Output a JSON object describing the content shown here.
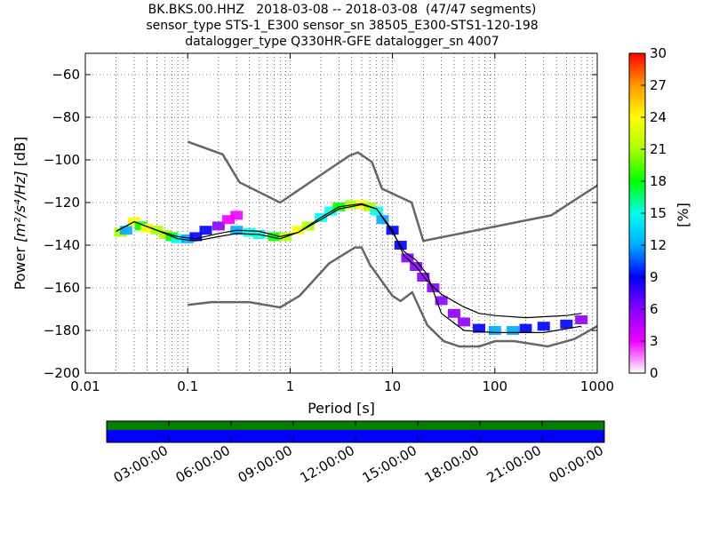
{
  "chart_data": [
    {
      "type": "heatmap",
      "title_lines": [
        "BK.BKS.00.HHZ   2018-03-08 -- 2018-03-08  (47/47 segments)",
        "sensor_type STS-1_E300 sensor_sn 38505_E300-STS1-120-198",
        "datalogger_type Q330HR-GFE datalogger_sn 4007"
      ],
      "xlabel": "Period [s]",
      "ylabel_prefix": "Power ",
      "ylabel_units": "[m²/s⁴/Hz]",
      "ylabel_suffix": " [dB]",
      "xscale": "log",
      "xlim": [
        0.01,
        1000
      ],
      "ylim": [
        -200,
        -50
      ],
      "x_ticks": [
        0.01,
        0.1,
        1,
        10,
        100,
        1000
      ],
      "x_tick_labels": [
        "0.01",
        "0.1",
        "1",
        "10",
        "100",
        "1000"
      ],
      "y_ticks": [
        -200,
        -180,
        -160,
        -140,
        -120,
        -100,
        -80,
        -60
      ],
      "y_tick_labels": [
        "−200",
        "−180",
        "−160",
        "−140",
        "−120",
        "−100",
        "−80",
        "−60"
      ],
      "grid": true,
      "colorbar": {
        "label": "[%]",
        "range": [
          0,
          30
        ],
        "ticks": [
          "0",
          "3",
          "6",
          "9",
          "12",
          "15",
          "18",
          "21",
          "24",
          "27",
          "30"
        ]
      },
      "noise_models": [
        {
          "name": "high",
          "points": [
            [
              0.1,
              -91.5
            ],
            [
              0.22,
              -97.4
            ],
            [
              0.32,
              -110.5
            ],
            [
              0.8,
              -120
            ],
            [
              3.8,
              -98
            ],
            [
              4.6,
              -96.5
            ],
            [
              6.3,
              -101
            ],
            [
              7.9,
              -113.5
            ],
            [
              15.4,
              -120
            ],
            [
              20,
              -138
            ],
            [
              354.8,
              -126
            ],
            [
              1000,
              -112
            ]
          ]
        },
        {
          "name": "low",
          "points": [
            [
              0.1,
              -168
            ],
            [
              0.17,
              -166.7
            ],
            [
              0.4,
              -166.7
            ],
            [
              0.8,
              -169.2
            ],
            [
              1.24,
              -163.7
            ],
            [
              2.4,
              -148.6
            ],
            [
              4.3,
              -141.1
            ],
            [
              5,
              -141.1
            ],
            [
              6,
              -149
            ],
            [
              10,
              -163.8
            ],
            [
              12,
              -166.2
            ],
            [
              15.6,
              -162.1
            ],
            [
              21.9,
              -177.5
            ],
            [
              31.6,
              -185
            ],
            [
              45,
              -187.5
            ],
            [
              70,
              -187.5
            ],
            [
              101,
              -185
            ],
            [
              154,
              -185
            ],
            [
              328,
              -187.5
            ],
            [
              600,
              -184
            ],
            [
              1000,
              -178
            ]
          ]
        }
      ],
      "mean_curve": {
        "points": [
          [
            0.02,
            -133.5
          ],
          [
            0.03,
            -129
          ],
          [
            0.05,
            -133
          ],
          [
            0.08,
            -136
          ],
          [
            0.12,
            -137
          ],
          [
            0.2,
            -134.5
          ],
          [
            0.3,
            -133
          ],
          [
            0.5,
            -133.5
          ],
          [
            0.8,
            -136
          ],
          [
            1.2,
            -134
          ],
          [
            2,
            -128
          ],
          [
            3,
            -123
          ],
          [
            5,
            -121
          ],
          [
            7,
            -123
          ],
          [
            10,
            -133
          ],
          [
            13,
            -145
          ],
          [
            17,
            -150
          ],
          [
            22,
            -157
          ],
          [
            30,
            -163
          ],
          [
            50,
            -169
          ],
          [
            70,
            -172
          ],
          [
            100,
            -173
          ],
          [
            200,
            -174
          ],
          [
            500,
            -173
          ],
          [
            700,
            -172
          ]
        ]
      },
      "mode_curve": {
        "points": [
          [
            0.02,
            -133.5
          ],
          [
            0.03,
            -129
          ],
          [
            0.05,
            -133
          ],
          [
            0.08,
            -137
          ],
          [
            0.12,
            -138
          ],
          [
            0.2,
            -136
          ],
          [
            0.3,
            -134.5
          ],
          [
            0.5,
            -135
          ],
          [
            0.8,
            -137
          ],
          [
            1.2,
            -134
          ],
          [
            2,
            -127
          ],
          [
            3,
            -122
          ],
          [
            5,
            -120.5
          ],
          [
            7,
            -123
          ],
          [
            10,
            -134
          ],
          [
            13,
            -143
          ],
          [
            17,
            -147
          ],
          [
            22,
            -154
          ],
          [
            30,
            -172
          ],
          [
            50,
            -180
          ],
          [
            100,
            -181
          ],
          [
            300,
            -181
          ],
          [
            700,
            -178
          ]
        ]
      },
      "pdf_band": {
        "description": "probability density of PSD values",
        "cells": [
          [
            0.022,
            -134,
            22
          ],
          [
            0.025,
            -133,
            12
          ],
          [
            0.03,
            -129,
            25
          ],
          [
            0.035,
            -131,
            18
          ],
          [
            0.04,
            -132,
            24
          ],
          [
            0.05,
            -133,
            22
          ],
          [
            0.06,
            -135,
            20
          ],
          [
            0.07,
            -136,
            18
          ],
          [
            0.08,
            -137,
            15
          ],
          [
            0.1,
            -137,
            12
          ],
          [
            0.12,
            -136,
            10
          ],
          [
            0.15,
            -133,
            8
          ],
          [
            0.2,
            -131,
            7
          ],
          [
            0.25,
            -128,
            4
          ],
          [
            0.3,
            -126,
            2
          ],
          [
            0.3,
            -133,
            12
          ],
          [
            0.4,
            -134,
            14
          ],
          [
            0.5,
            -135,
            16
          ],
          [
            0.7,
            -136,
            18
          ],
          [
            0.9,
            -136,
            22
          ],
          [
            1.2,
            -133,
            24
          ],
          [
            1.5,
            -131,
            20
          ],
          [
            2,
            -127,
            16
          ],
          [
            2.5,
            -124,
            14
          ],
          [
            3,
            -122,
            18
          ],
          [
            4,
            -121,
            22
          ],
          [
            5,
            -121,
            25
          ],
          [
            6,
            -122,
            20
          ],
          [
            7,
            -124,
            16
          ],
          [
            8,
            -128,
            12
          ],
          [
            10,
            -133,
            10
          ],
          [
            12,
            -140,
            8
          ],
          [
            14,
            -146,
            7
          ],
          [
            17,
            -150,
            6
          ],
          [
            20,
            -155,
            6
          ],
          [
            25,
            -160,
            5
          ],
          [
            30,
            -166,
            5
          ],
          [
            40,
            -172,
            6
          ],
          [
            50,
            -176,
            7
          ],
          [
            70,
            -179,
            10
          ],
          [
            100,
            -180,
            12
          ],
          [
            150,
            -180,
            11
          ],
          [
            200,
            -179,
            10
          ],
          [
            300,
            -178,
            9
          ],
          [
            500,
            -177,
            8
          ],
          [
            700,
            -175,
            6
          ]
        ]
      }
    },
    {
      "type": "timeline",
      "ticks": [
        "03:00:00",
        "06:00:00",
        "09:00:00",
        "12:00:00",
        "15:00:00",
        "18:00:00",
        "21:00:00",
        "00:00:00"
      ],
      "bars": [
        {
          "color": "#007f00",
          "coverage": 1.0
        },
        {
          "color": "#0000ff",
          "coverage": 1.0
        }
      ]
    }
  ],
  "colors": {
    "noise_model": "#666666",
    "mean": "#000000",
    "mode": "#000000",
    "colormap": [
      "#ffffff",
      "#ee00ff",
      "#8800ff",
      "#0000ff",
      "#00aaff",
      "#00ffee",
      "#00ff00",
      "#aaff00",
      "#ffff00",
      "#ff9900",
      "#ff0000"
    ]
  }
}
